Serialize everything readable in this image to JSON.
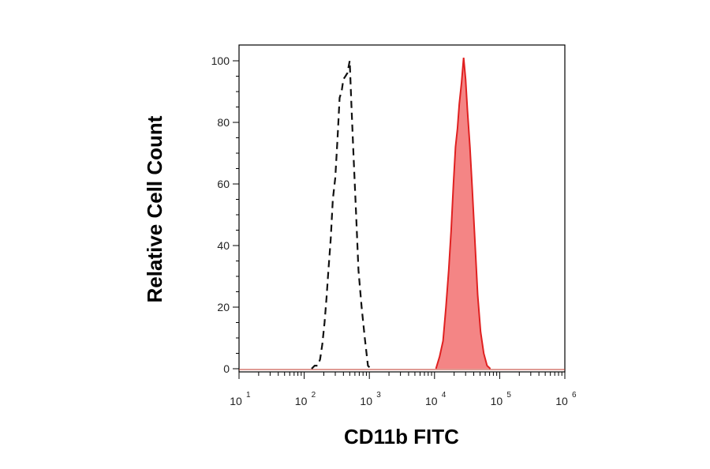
{
  "chart_data": {
    "type": "area",
    "title": "",
    "xlabel": "CD11b FITC",
    "ylabel": "Relative Cell Count",
    "x_scale": "log",
    "xlim": [
      10,
      1000000
    ],
    "ylim": [
      0,
      100
    ],
    "x_ticks": [
      {
        "value": 10,
        "base": "10",
        "exp": "1"
      },
      {
        "value": 100,
        "base": "10",
        "exp": "2"
      },
      {
        "value": 1000,
        "base": "10",
        "exp": "3"
      },
      {
        "value": 10000,
        "base": "10",
        "exp": "4"
      },
      {
        "value": 100000,
        "base": "10",
        "exp": "5"
      },
      {
        "value": 1000000,
        "base": "10",
        "exp": "6"
      }
    ],
    "y_ticks": [
      "0",
      "20",
      "40",
      "60",
      "80",
      "100"
    ],
    "grid": false,
    "legend": "none",
    "series": [
      {
        "style": "dashed-outline",
        "color": "#111111",
        "points": [
          [
            130,
            0
          ],
          [
            145,
            1
          ],
          [
            160,
            1
          ],
          [
            175,
            3
          ],
          [
            190,
            8
          ],
          [
            205,
            15
          ],
          [
            220,
            23
          ],
          [
            235,
            32
          ],
          [
            255,
            42
          ],
          [
            275,
            55
          ],
          [
            300,
            62
          ],
          [
            325,
            75
          ],
          [
            350,
            88
          ],
          [
            375,
            90
          ],
          [
            400,
            94
          ],
          [
            430,
            95
          ],
          [
            460,
            96
          ],
          [
            500,
            100
          ],
          [
            530,
            86
          ],
          [
            570,
            70
          ],
          [
            620,
            52
          ],
          [
            680,
            32
          ],
          [
            760,
            20
          ],
          [
            850,
            10
          ],
          [
            950,
            1
          ],
          [
            1050,
            0
          ]
        ]
      },
      {
        "style": "filled",
        "color": "#e02020",
        "fill": "#f48585",
        "points": [
          [
            10500,
            0
          ],
          [
            12000,
            4
          ],
          [
            13500,
            9
          ],
          [
            15000,
            20
          ],
          [
            16500,
            32
          ],
          [
            18000,
            45
          ],
          [
            19500,
            60
          ],
          [
            21000,
            72
          ],
          [
            22500,
            78
          ],
          [
            24000,
            86
          ],
          [
            26000,
            93
          ],
          [
            28000,
            101
          ],
          [
            30000,
            94
          ],
          [
            32000,
            84
          ],
          [
            35000,
            72
          ],
          [
            38000,
            58
          ],
          [
            42000,
            40
          ],
          [
            46000,
            24
          ],
          [
            51000,
            12
          ],
          [
            57000,
            5
          ],
          [
            64000,
            1
          ],
          [
            72000,
            0
          ]
        ]
      }
    ]
  }
}
